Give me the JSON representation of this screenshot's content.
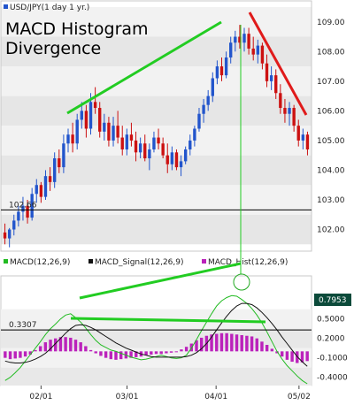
{
  "chart_data": [
    {
      "type": "candlestick",
      "legend": "USD/JPY(1 day 1 yr.)",
      "title_line1": "MACD Histogram",
      "title_line2": "Divergence",
      "ylim": [
        101.3,
        109.5
      ],
      "yticks": [
        102.0,
        103.0,
        104.0,
        105.0,
        106.0,
        107.0,
        108.0,
        109.0
      ],
      "ytick_labels": [
        "102.00",
        "103.00",
        "104.00",
        "105.00",
        "106.00",
        "107.00",
        "108.00",
        "109.00"
      ],
      "hline_value": 102.66,
      "hline_label": "102.66",
      "colors": {
        "up": "#2255cc",
        "down": "#cc1111"
      },
      "candles": [
        [
          101.9,
          102.2,
          101.5,
          101.7
        ],
        [
          101.7,
          102.05,
          101.4,
          102.0
        ],
        [
          102.0,
          102.5,
          101.8,
          102.3
        ],
        [
          102.3,
          102.8,
          102.1,
          102.6
        ],
        [
          102.6,
          103.1,
          102.3,
          102.8
        ],
        [
          102.8,
          103.0,
          102.2,
          102.4
        ],
        [
          102.4,
          103.4,
          102.3,
          103.2
        ],
        [
          103.2,
          103.7,
          102.9,
          103.5
        ],
        [
          103.5,
          103.6,
          102.9,
          103.1
        ],
        [
          103.1,
          104.0,
          103.0,
          103.8
        ],
        [
          103.8,
          104.1,
          103.3,
          103.6
        ],
        [
          103.6,
          104.6,
          103.4,
          104.4
        ],
        [
          104.4,
          104.7,
          103.9,
          104.1
        ],
        [
          104.1,
          105.2,
          103.9,
          104.9
        ],
        [
          104.9,
          105.4,
          104.6,
          105.2
        ],
        [
          105.2,
          105.6,
          104.6,
          104.9
        ],
        [
          104.9,
          105.9,
          104.7,
          105.7
        ],
        [
          105.7,
          106.3,
          105.4,
          106.0
        ],
        [
          106.0,
          106.2,
          105.1,
          105.4
        ],
        [
          105.4,
          106.6,
          105.2,
          106.3
        ],
        [
          106.3,
          106.8,
          105.9,
          106.1
        ],
        [
          106.1,
          106.3,
          105.1,
          105.3
        ],
        [
          105.3,
          105.9,
          105.0,
          105.6
        ],
        [
          105.6,
          105.8,
          104.8,
          105.0
        ],
        [
          105.0,
          105.8,
          104.8,
          105.5
        ],
        [
          105.5,
          106.0,
          104.9,
          105.1
        ],
        [
          105.1,
          105.5,
          104.5,
          104.7
        ],
        [
          104.7,
          105.4,
          104.5,
          105.2
        ],
        [
          105.2,
          105.6,
          104.8,
          105.0
        ],
        [
          105.0,
          105.3,
          104.3,
          104.6
        ],
        [
          104.6,
          105.1,
          104.4,
          104.9
        ],
        [
          104.9,
          105.2,
          104.3,
          104.4
        ],
        [
          104.4,
          104.9,
          104.0,
          104.7
        ],
        [
          104.7,
          105.3,
          104.6,
          105.1
        ],
        [
          105.1,
          105.4,
          104.7,
          104.9
        ],
        [
          104.9,
          105.1,
          104.4,
          104.5
        ],
        [
          104.5,
          104.9,
          103.9,
          104.2
        ],
        [
          104.2,
          104.8,
          104.0,
          104.6
        ],
        [
          104.6,
          104.7,
          104.0,
          104.1
        ],
        [
          104.1,
          104.5,
          103.8,
          104.3
        ],
        [
          104.3,
          104.8,
          104.2,
          104.7
        ],
        [
          104.7,
          105.2,
          104.5,
          105.0
        ],
        [
          105.0,
          105.5,
          104.8,
          105.4
        ],
        [
          105.4,
          106.1,
          105.3,
          105.9
        ],
        [
          105.9,
          106.4,
          105.6,
          106.2
        ],
        [
          106.2,
          106.7,
          106.0,
          106.5
        ],
        [
          106.5,
          107.3,
          106.3,
          107.1
        ],
        [
          107.1,
          107.7,
          106.9,
          107.5
        ],
        [
          107.5,
          107.8,
          107.0,
          107.2
        ],
        [
          107.2,
          108.0,
          107.1,
          107.8
        ],
        [
          107.8,
          108.5,
          107.6,
          108.3
        ],
        [
          108.3,
          108.7,
          108.0,
          108.5
        ],
        [
          108.5,
          108.9,
          108.1,
          108.3
        ],
        [
          108.3,
          108.8,
          108.0,
          108.6
        ],
        [
          108.6,
          108.8,
          107.9,
          108.1
        ],
        [
          108.1,
          108.5,
          107.7,
          107.9
        ],
        [
          107.9,
          108.4,
          107.6,
          108.2
        ],
        [
          108.2,
          108.3,
          107.4,
          107.6
        ],
        [
          107.6,
          107.9,
          106.8,
          107.0
        ],
        [
          107.0,
          107.5,
          106.7,
          107.2
        ],
        [
          107.2,
          107.4,
          106.4,
          106.6
        ],
        [
          106.6,
          106.9,
          105.9,
          106.1
        ],
        [
          106.1,
          106.4,
          105.6,
          105.9
        ],
        [
          105.9,
          106.3,
          105.5,
          106.1
        ],
        [
          106.1,
          106.2,
          105.3,
          105.5
        ],
        [
          105.5,
          105.7,
          104.8,
          105.0
        ],
        [
          105.0,
          105.4,
          104.7,
          105.2
        ],
        [
          105.2,
          105.3,
          104.5,
          104.7
        ]
      ]
    },
    {
      "type": "line",
      "legend": [
        {
          "name": "MACD(12,26,9)",
          "color": "#22bb22"
        },
        {
          "name": "MACD_Signal(12,26,9)",
          "color": "#111111"
        },
        {
          "name": "MACD_Hist(12,26,9)",
          "color": "#bb22bb"
        }
      ],
      "ylim": [
        -0.5,
        1.0
      ],
      "yticks": [
        -0.4,
        -0.1,
        0.2,
        0.5
      ],
      "ytick_labels": [
        "-0.4000",
        "-0.1000",
        "0.2000",
        "0.5000"
      ],
      "current_value_label": "0.7953",
      "current_value": 0.7953,
      "hline_value": 0.3307,
      "hline_label": "0.3307",
      "macd": [
        -0.45,
        -0.4,
        -0.33,
        -0.25,
        -0.15,
        -0.05,
        0.05,
        0.15,
        0.26,
        0.35,
        0.42,
        0.5,
        0.56,
        0.58,
        0.52,
        0.45,
        0.36,
        0.26,
        0.17,
        0.1,
        0.06,
        0.02,
        0.0,
        -0.03,
        -0.06,
        -0.09,
        -0.11,
        -0.13,
        -0.12,
        -0.1,
        -0.08,
        -0.06,
        -0.08,
        -0.1,
        -0.11,
        -0.1,
        -0.06,
        0.05,
        0.18,
        0.32,
        0.45,
        0.58,
        0.7,
        0.78,
        0.83,
        0.86,
        0.85,
        0.8,
        0.74,
        0.66,
        0.56,
        0.44,
        0.3,
        0.15,
        0.0,
        -0.12,
        -0.22,
        -0.3,
        -0.38,
        -0.45,
        -0.5
      ],
      "signal": [
        -0.15,
        -0.17,
        -0.18,
        -0.18,
        -0.17,
        -0.15,
        -0.12,
        -0.08,
        -0.03,
        0.04,
        0.12,
        0.2,
        0.28,
        0.35,
        0.4,
        0.41,
        0.4,
        0.37,
        0.33,
        0.28,
        0.23,
        0.18,
        0.13,
        0.09,
        0.05,
        0.02,
        -0.01,
        -0.04,
        -0.06,
        -0.08,
        -0.09,
        -0.09,
        -0.09,
        -0.09,
        -0.09,
        -0.09,
        -0.08,
        -0.06,
        -0.02,
        0.04,
        0.12,
        0.22,
        0.33,
        0.44,
        0.54,
        0.63,
        0.7,
        0.74,
        0.74,
        0.72,
        0.67,
        0.6,
        0.52,
        0.43,
        0.33,
        0.22,
        0.12,
        0.02,
        -0.08,
        -0.16,
        -0.23
      ],
      "hist": [
        -0.1,
        -0.12,
        -0.11,
        -0.1,
        -0.08,
        -0.05,
        0.02,
        0.08,
        0.14,
        0.18,
        0.2,
        0.22,
        0.22,
        0.21,
        0.18,
        0.14,
        0.08,
        0.02,
        -0.03,
        -0.07,
        -0.1,
        -0.12,
        -0.13,
        -0.12,
        -0.11,
        -0.1,
        -0.09,
        -0.08,
        -0.06,
        -0.05,
        -0.04,
        -0.04,
        -0.03,
        -0.02,
        0.0,
        0.03,
        0.07,
        0.12,
        0.17,
        0.21,
        0.24,
        0.26,
        0.27,
        0.28,
        0.28,
        0.27,
        0.26,
        0.25,
        0.24,
        0.23,
        0.2,
        0.15,
        0.1,
        0.04,
        -0.03,
        -0.08,
        -0.13,
        -0.16,
        -0.18,
        -0.17,
        -0.15
      ]
    }
  ],
  "x_labels": [
    {
      "label": "02/01",
      "frac": 0.125
    },
    {
      "label": "03/01",
      "frac": 0.405
    },
    {
      "label": "04/01",
      "frac": 0.695
    },
    {
      "label": "05/02",
      "frac": 0.965
    }
  ]
}
